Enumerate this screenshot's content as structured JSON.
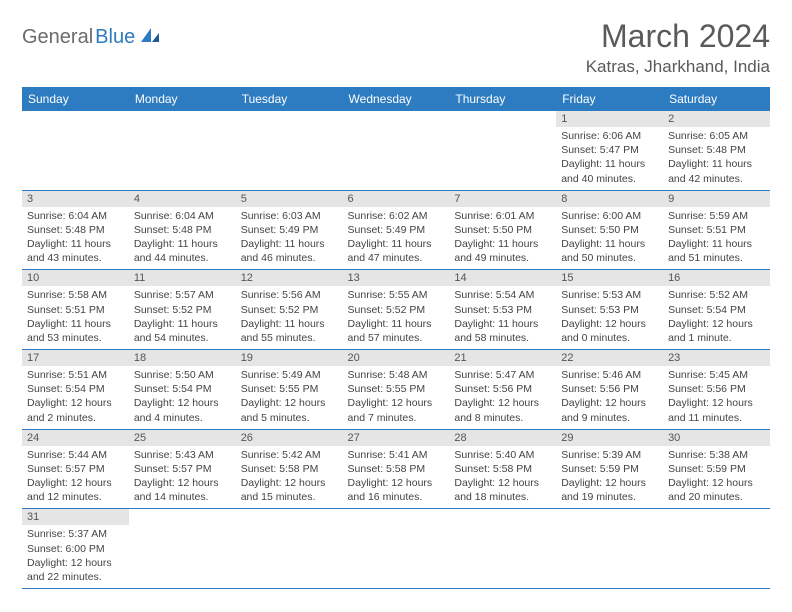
{
  "logo": {
    "part1": "General",
    "part2": "Blue"
  },
  "title": "March 2024",
  "location": "Katras, Jharkhand, India",
  "colors": {
    "header_bg": "#2d7bc0",
    "header_fg": "#ffffff",
    "daynum_bg": "#e5e5e5",
    "row_divider": "#2d7bc0",
    "logo_gray": "#6b6b6b",
    "logo_blue": "#2d7bc0"
  },
  "typography": {
    "title_fontsize": 32,
    "location_fontsize": 17,
    "header_fontsize": 12,
    "daynum_fontsize": 11,
    "body_fontsize": 10.5
  },
  "weekdays": [
    "Sunday",
    "Monday",
    "Tuesday",
    "Wednesday",
    "Thursday",
    "Friday",
    "Saturday"
  ],
  "weeks": [
    [
      null,
      null,
      null,
      null,
      null,
      {
        "n": "1",
        "sunrise": "Sunrise: 6:06 AM",
        "sunset": "Sunset: 5:47 PM",
        "daylight": "Daylight: 11 hours and 40 minutes."
      },
      {
        "n": "2",
        "sunrise": "Sunrise: 6:05 AM",
        "sunset": "Sunset: 5:48 PM",
        "daylight": "Daylight: 11 hours and 42 minutes."
      }
    ],
    [
      {
        "n": "3",
        "sunrise": "Sunrise: 6:04 AM",
        "sunset": "Sunset: 5:48 PM",
        "daylight": "Daylight: 11 hours and 43 minutes."
      },
      {
        "n": "4",
        "sunrise": "Sunrise: 6:04 AM",
        "sunset": "Sunset: 5:48 PM",
        "daylight": "Daylight: 11 hours and 44 minutes."
      },
      {
        "n": "5",
        "sunrise": "Sunrise: 6:03 AM",
        "sunset": "Sunset: 5:49 PM",
        "daylight": "Daylight: 11 hours and 46 minutes."
      },
      {
        "n": "6",
        "sunrise": "Sunrise: 6:02 AM",
        "sunset": "Sunset: 5:49 PM",
        "daylight": "Daylight: 11 hours and 47 minutes."
      },
      {
        "n": "7",
        "sunrise": "Sunrise: 6:01 AM",
        "sunset": "Sunset: 5:50 PM",
        "daylight": "Daylight: 11 hours and 49 minutes."
      },
      {
        "n": "8",
        "sunrise": "Sunrise: 6:00 AM",
        "sunset": "Sunset: 5:50 PM",
        "daylight": "Daylight: 11 hours and 50 minutes."
      },
      {
        "n": "9",
        "sunrise": "Sunrise: 5:59 AM",
        "sunset": "Sunset: 5:51 PM",
        "daylight": "Daylight: 11 hours and 51 minutes."
      }
    ],
    [
      {
        "n": "10",
        "sunrise": "Sunrise: 5:58 AM",
        "sunset": "Sunset: 5:51 PM",
        "daylight": "Daylight: 11 hours and 53 minutes."
      },
      {
        "n": "11",
        "sunrise": "Sunrise: 5:57 AM",
        "sunset": "Sunset: 5:52 PM",
        "daylight": "Daylight: 11 hours and 54 minutes."
      },
      {
        "n": "12",
        "sunrise": "Sunrise: 5:56 AM",
        "sunset": "Sunset: 5:52 PM",
        "daylight": "Daylight: 11 hours and 55 minutes."
      },
      {
        "n": "13",
        "sunrise": "Sunrise: 5:55 AM",
        "sunset": "Sunset: 5:52 PM",
        "daylight": "Daylight: 11 hours and 57 minutes."
      },
      {
        "n": "14",
        "sunrise": "Sunrise: 5:54 AM",
        "sunset": "Sunset: 5:53 PM",
        "daylight": "Daylight: 11 hours and 58 minutes."
      },
      {
        "n": "15",
        "sunrise": "Sunrise: 5:53 AM",
        "sunset": "Sunset: 5:53 PM",
        "daylight": "Daylight: 12 hours and 0 minutes."
      },
      {
        "n": "16",
        "sunrise": "Sunrise: 5:52 AM",
        "sunset": "Sunset: 5:54 PM",
        "daylight": "Daylight: 12 hours and 1 minute."
      }
    ],
    [
      {
        "n": "17",
        "sunrise": "Sunrise: 5:51 AM",
        "sunset": "Sunset: 5:54 PM",
        "daylight": "Daylight: 12 hours and 2 minutes."
      },
      {
        "n": "18",
        "sunrise": "Sunrise: 5:50 AM",
        "sunset": "Sunset: 5:54 PM",
        "daylight": "Daylight: 12 hours and 4 minutes."
      },
      {
        "n": "19",
        "sunrise": "Sunrise: 5:49 AM",
        "sunset": "Sunset: 5:55 PM",
        "daylight": "Daylight: 12 hours and 5 minutes."
      },
      {
        "n": "20",
        "sunrise": "Sunrise: 5:48 AM",
        "sunset": "Sunset: 5:55 PM",
        "daylight": "Daylight: 12 hours and 7 minutes."
      },
      {
        "n": "21",
        "sunrise": "Sunrise: 5:47 AM",
        "sunset": "Sunset: 5:56 PM",
        "daylight": "Daylight: 12 hours and 8 minutes."
      },
      {
        "n": "22",
        "sunrise": "Sunrise: 5:46 AM",
        "sunset": "Sunset: 5:56 PM",
        "daylight": "Daylight: 12 hours and 9 minutes."
      },
      {
        "n": "23",
        "sunrise": "Sunrise: 5:45 AM",
        "sunset": "Sunset: 5:56 PM",
        "daylight": "Daylight: 12 hours and 11 minutes."
      }
    ],
    [
      {
        "n": "24",
        "sunrise": "Sunrise: 5:44 AM",
        "sunset": "Sunset: 5:57 PM",
        "daylight": "Daylight: 12 hours and 12 minutes."
      },
      {
        "n": "25",
        "sunrise": "Sunrise: 5:43 AM",
        "sunset": "Sunset: 5:57 PM",
        "daylight": "Daylight: 12 hours and 14 minutes."
      },
      {
        "n": "26",
        "sunrise": "Sunrise: 5:42 AM",
        "sunset": "Sunset: 5:58 PM",
        "daylight": "Daylight: 12 hours and 15 minutes."
      },
      {
        "n": "27",
        "sunrise": "Sunrise: 5:41 AM",
        "sunset": "Sunset: 5:58 PM",
        "daylight": "Daylight: 12 hours and 16 minutes."
      },
      {
        "n": "28",
        "sunrise": "Sunrise: 5:40 AM",
        "sunset": "Sunset: 5:58 PM",
        "daylight": "Daylight: 12 hours and 18 minutes."
      },
      {
        "n": "29",
        "sunrise": "Sunrise: 5:39 AM",
        "sunset": "Sunset: 5:59 PM",
        "daylight": "Daylight: 12 hours and 19 minutes."
      },
      {
        "n": "30",
        "sunrise": "Sunrise: 5:38 AM",
        "sunset": "Sunset: 5:59 PM",
        "daylight": "Daylight: 12 hours and 20 minutes."
      }
    ],
    [
      {
        "n": "31",
        "sunrise": "Sunrise: 5:37 AM",
        "sunset": "Sunset: 6:00 PM",
        "daylight": "Daylight: 12 hours and 22 minutes."
      },
      null,
      null,
      null,
      null,
      null,
      null
    ]
  ]
}
